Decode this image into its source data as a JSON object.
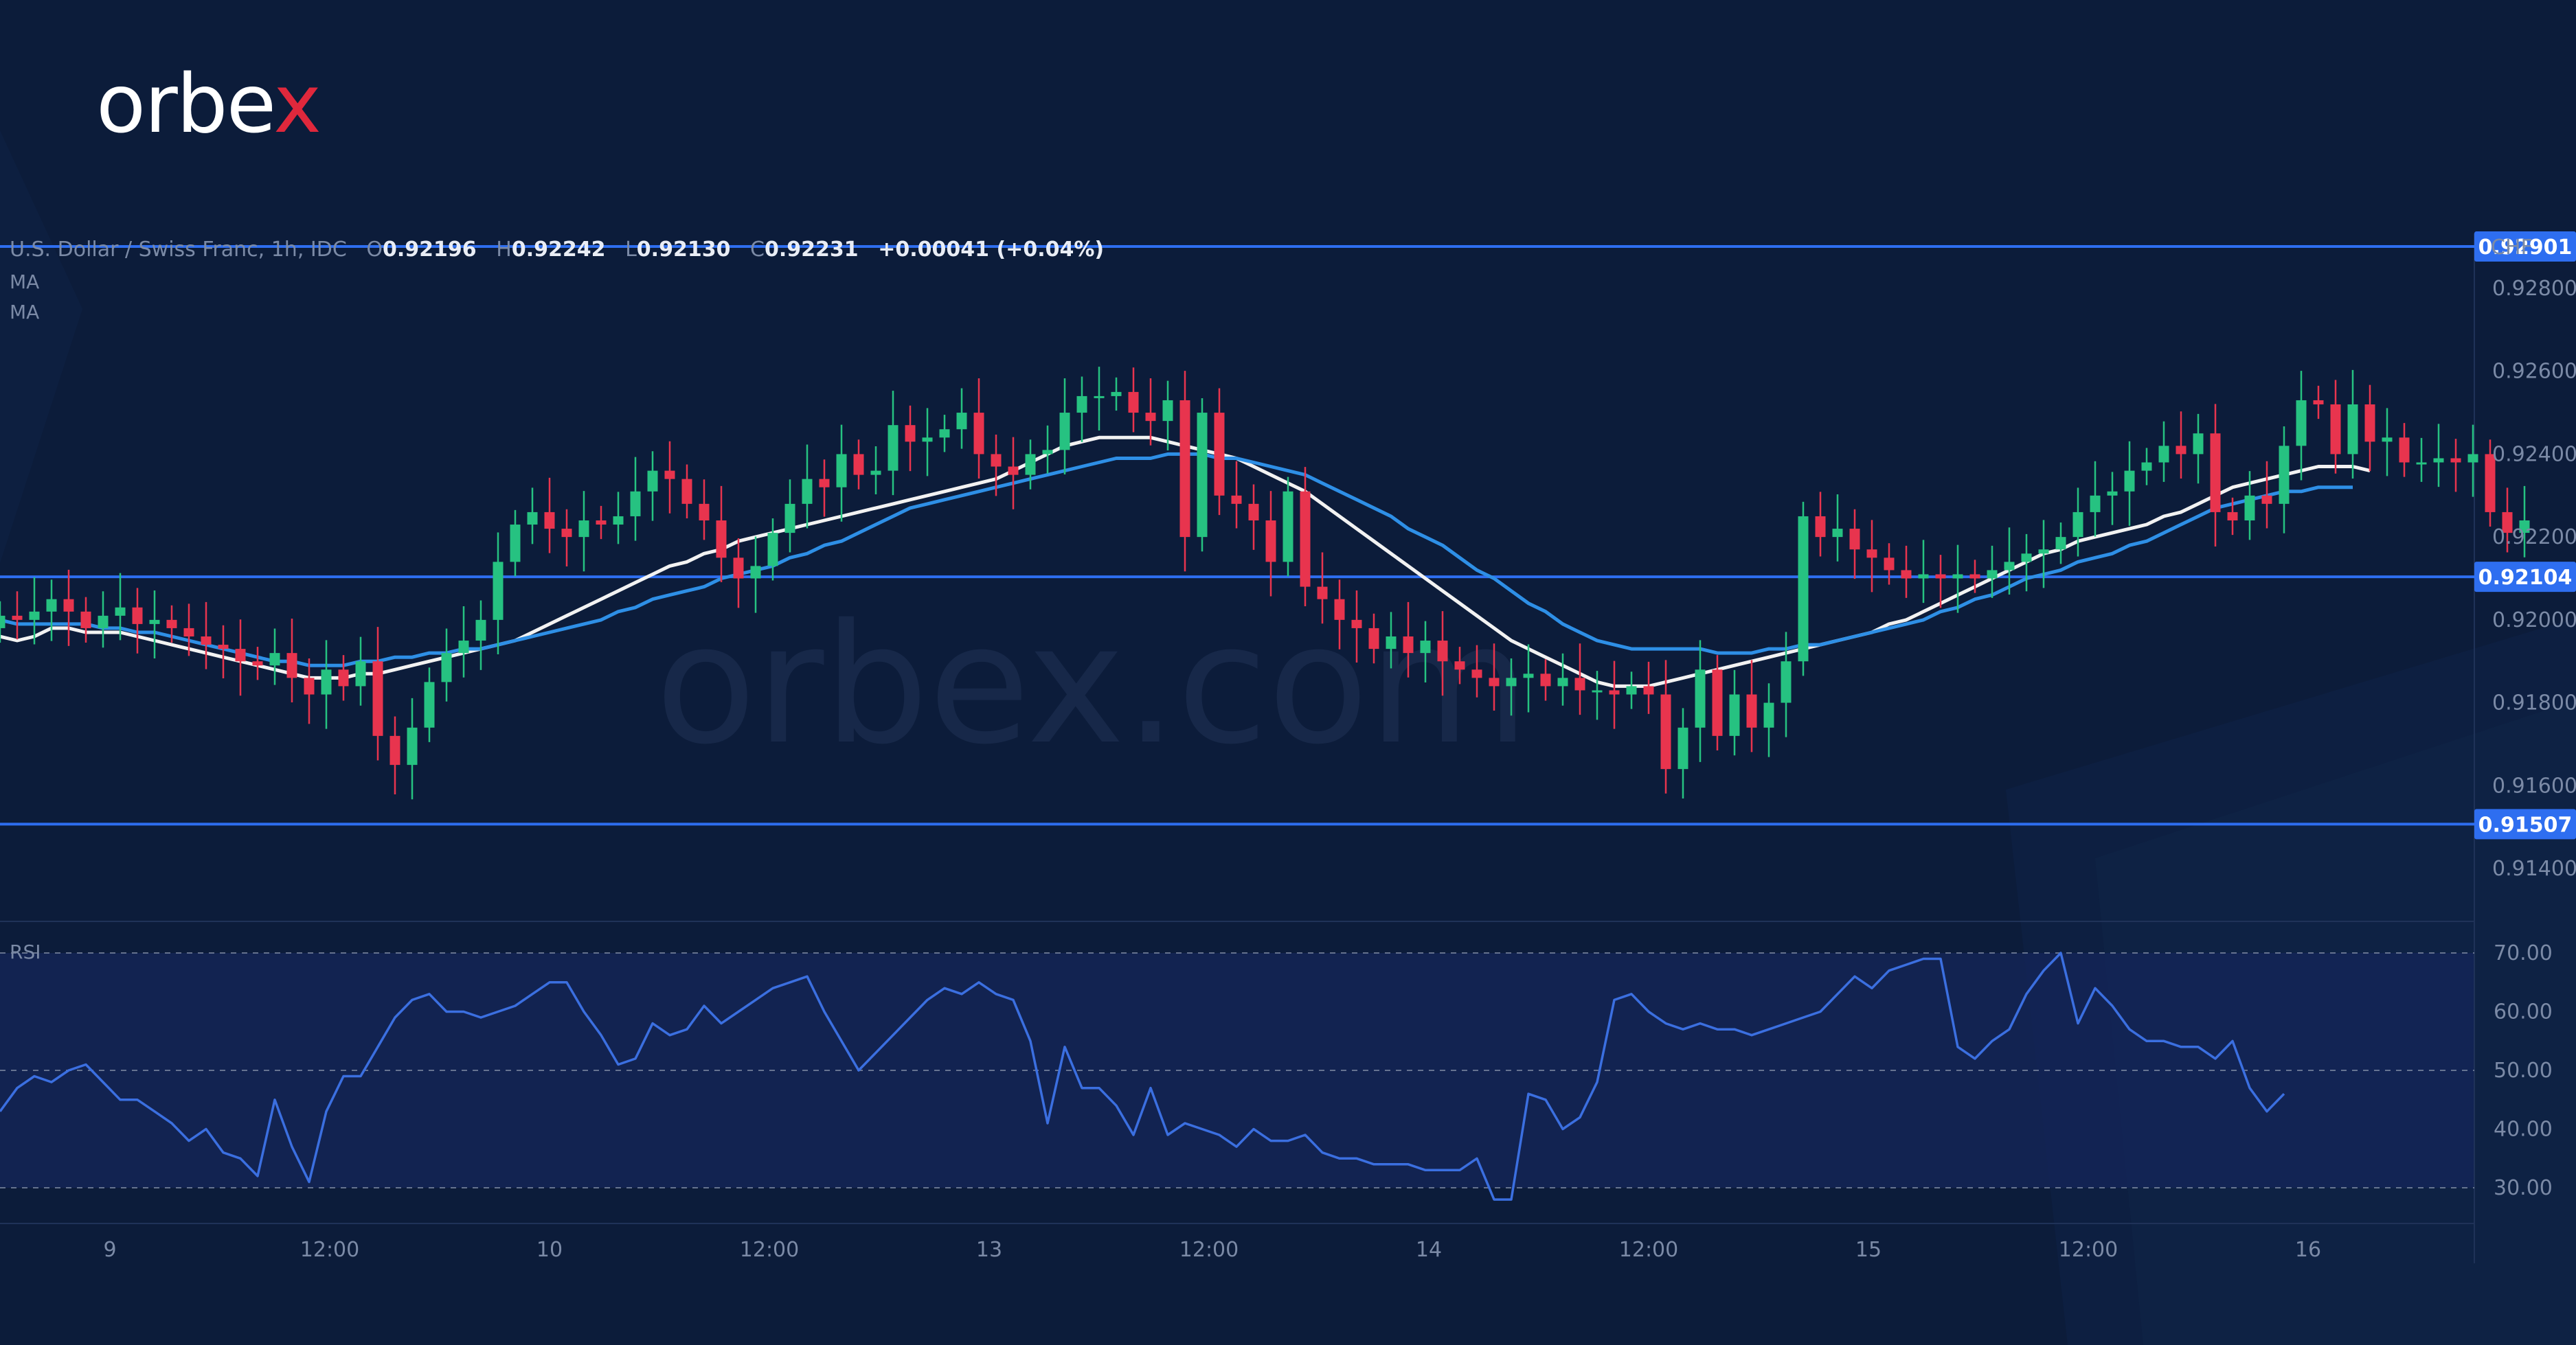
{
  "brand": {
    "logo_main": "orbe",
    "logo_x": "x",
    "watermark": "orbex.com"
  },
  "legend": {
    "symbol": "U.S. Dollar / Swiss Franc, 1h, IDC",
    "o_label": "O",
    "o_value": "0.92196",
    "h_label": "H",
    "h_value": "0.92242",
    "l_label": "L",
    "l_value": "0.92130",
    "c_label": "C",
    "c_value": "0.92231",
    "change": "+0.00041 (+0.04%)",
    "ma1": "MA",
    "ma2": "MA"
  },
  "colors": {
    "background": "#0c1c3a",
    "bull": "#26c281",
    "bear": "#e8344e",
    "ma_fast": "#f2f2f2",
    "ma_slow": "#2e8fe6",
    "level_line": "#2e6ef0",
    "rsi_line": "#3b6fe0"
  },
  "chart_data": [
    {
      "type": "candlestick",
      "currency": "CHF",
      "ylim": [
        0.913,
        0.93
      ],
      "y_ticks": [
        "0.92800",
        "0.92600",
        "0.92400",
        "0.92200",
        "0.92000",
        "0.91800",
        "0.91600",
        "0.91400"
      ],
      "levels": [
        {
          "value": 0.92901,
          "label": "0.92901"
        },
        {
          "value": 0.92104,
          "label": "0.92104"
        },
        {
          "value": 0.91507,
          "label": "0.91507"
        }
      ],
      "x_ticks": [
        "9",
        "12:00",
        "10",
        "12:00",
        "13",
        "12:00",
        "14",
        "12:00",
        "15",
        "12:00",
        "16"
      ],
      "series": [
        {
          "name": "MA",
          "values": [
            0.9196,
            0.9195,
            0.9196,
            0.9198,
            0.9198,
            0.9197,
            0.9197,
            0.9197,
            0.9196,
            0.9195,
            0.9194,
            0.9193,
            0.9192,
            0.9191,
            0.919,
            0.9189,
            0.9188,
            0.9187,
            0.9186,
            0.9186,
            0.9186,
            0.9187,
            0.9187,
            0.9188,
            0.9189,
            0.919,
            0.9191,
            0.9192,
            0.9193,
            0.9194,
            0.9195,
            0.9197,
            0.9199,
            0.9201,
            0.9203,
            0.9205,
            0.9207,
            0.9209,
            0.9211,
            0.9213,
            0.9214,
            0.9216,
            0.9217,
            0.9219,
            0.922,
            0.9221,
            0.9222,
            0.9223,
            0.9224,
            0.9225,
            0.9226,
            0.9227,
            0.9228,
            0.9229,
            0.923,
            0.9231,
            0.9232,
            0.9233,
            0.9234,
            0.9236,
            0.9238,
            0.924,
            0.9242,
            0.9243,
            0.9244,
            0.9244,
            0.9244,
            0.9244,
            0.9243,
            0.9242,
            0.9241,
            0.924,
            0.9239,
            0.9237,
            0.9235,
            0.9233,
            0.9231,
            0.9228,
            0.9225,
            0.9222,
            0.9219,
            0.9216,
            0.9213,
            0.921,
            0.9207,
            0.9204,
            0.9201,
            0.9198,
            0.9195,
            0.9193,
            0.9191,
            0.9189,
            0.9187,
            0.9185,
            0.9184,
            0.9184,
            0.9184,
            0.9185,
            0.9186,
            0.9187,
            0.9188,
            0.9189,
            0.919,
            0.9191,
            0.9192,
            0.9193,
            0.9194,
            0.9195,
            0.9196,
            0.9197,
            0.9199,
            0.92,
            0.9202,
            0.9204,
            0.9206,
            0.9208,
            0.921,
            0.9212,
            0.9214,
            0.9216,
            0.9217,
            0.9219,
            0.922,
            0.9221,
            0.9222,
            0.9223,
            0.9225,
            0.9226,
            0.9228,
            0.923,
            0.9232,
            0.9233,
            0.9234,
            0.9235,
            0.9236,
            0.9237,
            0.9237,
            0.9237,
            0.9236
          ]
        },
        {
          "name": "MA",
          "values": [
            0.92,
            0.9199,
            0.9199,
            0.9199,
            0.9199,
            0.9199,
            0.9198,
            0.9198,
            0.9197,
            0.9197,
            0.9196,
            0.9195,
            0.9194,
            0.9193,
            0.9192,
            0.9191,
            0.919,
            0.919,
            0.9189,
            0.9189,
            0.9189,
            0.919,
            0.919,
            0.9191,
            0.9191,
            0.9192,
            0.9192,
            0.9193,
            0.9193,
            0.9194,
            0.9195,
            0.9196,
            0.9197,
            0.9198,
            0.9199,
            0.92,
            0.9202,
            0.9203,
            0.9205,
            0.9206,
            0.9207,
            0.9208,
            0.921,
            0.9211,
            0.9212,
            0.9213,
            0.9215,
            0.9216,
            0.9218,
            0.9219,
            0.9221,
            0.9223,
            0.9225,
            0.9227,
            0.9228,
            0.9229,
            0.923,
            0.9231,
            0.9232,
            0.9233,
            0.9234,
            0.9235,
            0.9236,
            0.9237,
            0.9238,
            0.9239,
            0.9239,
            0.9239,
            0.924,
            0.924,
            0.924,
            0.9239,
            0.9239,
            0.9238,
            0.9237,
            0.9236,
            0.9235,
            0.9233,
            0.9231,
            0.9229,
            0.9227,
            0.9225,
            0.9222,
            0.922,
            0.9218,
            0.9215,
            0.9212,
            0.921,
            0.9207,
            0.9204,
            0.9202,
            0.9199,
            0.9197,
            0.9195,
            0.9194,
            0.9193,
            0.9193,
            0.9193,
            0.9193,
            0.9193,
            0.9192,
            0.9192,
            0.9192,
            0.9193,
            0.9193,
            0.9194,
            0.9194,
            0.9195,
            0.9196,
            0.9197,
            0.9198,
            0.9199,
            0.92,
            0.9202,
            0.9203,
            0.9205,
            0.9206,
            0.9208,
            0.921,
            0.9211,
            0.9212,
            0.9214,
            0.9215,
            0.9216,
            0.9218,
            0.9219,
            0.9221,
            0.9223,
            0.9225,
            0.9227,
            0.9228,
            0.9229,
            0.923,
            0.9231,
            0.9231,
            0.9232,
            0.9232,
            0.9232
          ]
        }
      ],
      "candles_close": [
        0.9201,
        0.92,
        0.9202,
        0.9205,
        0.9202,
        0.9198,
        0.9201,
        0.9203,
        0.9199,
        0.92,
        0.9198,
        0.9196,
        0.9194,
        0.9193,
        0.919,
        0.9189,
        0.9192,
        0.9186,
        0.9182,
        0.9188,
        0.9184,
        0.919,
        0.9172,
        0.9165,
        0.9174,
        0.9185,
        0.9192,
        0.9195,
        0.92,
        0.9214,
        0.9223,
        0.9226,
        0.9222,
        0.922,
        0.9224,
        0.9223,
        0.9225,
        0.9231,
        0.9236,
        0.9234,
        0.9228,
        0.9224,
        0.9215,
        0.921,
        0.9213,
        0.9221,
        0.9228,
        0.9234,
        0.9232,
        0.924,
        0.9235,
        0.9236,
        0.9247,
        0.9243,
        0.9244,
        0.9246,
        0.925,
        0.924,
        0.9237,
        0.9235,
        0.924,
        0.9241,
        0.925,
        0.9254,
        0.9254,
        0.9255,
        0.925,
        0.9248,
        0.9253,
        0.922,
        0.925,
        0.923,
        0.9228,
        0.9224,
        0.9214,
        0.9231,
        0.9208,
        0.9205,
        0.92,
        0.9198,
        0.9193,
        0.9196,
        0.9192,
        0.9195,
        0.919,
        0.9188,
        0.9186,
        0.9184,
        0.9186,
        0.9187,
        0.9184,
        0.9186,
        0.9183,
        0.9183,
        0.9182,
        0.9184,
        0.9182,
        0.9164,
        0.9174,
        0.9188,
        0.9172,
        0.9182,
        0.9174,
        0.918,
        0.919,
        0.9225,
        0.922,
        0.9222,
        0.9217,
        0.9215,
        0.9212,
        0.921,
        0.9211,
        0.921,
        0.9211,
        0.921,
        0.9212,
        0.9214,
        0.9216,
        0.9217,
        0.922,
        0.9226,
        0.923,
        0.9231,
        0.9236,
        0.9238,
        0.9242,
        0.924,
        0.9245,
        0.9226,
        0.9224,
        0.923,
        0.9228,
        0.9242,
        0.9253,
        0.9252,
        0.924,
        0.9252,
        0.9243,
        0.9244,
        0.9238,
        0.9238,
        0.9239,
        0.9238,
        0.924,
        0.9226,
        0.9221,
        0.9224
      ],
      "rsi": {
        "name": "RSI",
        "ylim": [
          25,
          75
        ],
        "y_ticks": [
          "70.00",
          "60.00",
          "50.00",
          "40.00",
          "30.00"
        ],
        "upper": 70,
        "lower": 30,
        "values": [
          43,
          47,
          49,
          48,
          50,
          51,
          48,
          45,
          45,
          43,
          41,
          38,
          40,
          36,
          35,
          32,
          45,
          37,
          31,
          43,
          49,
          49,
          54,
          59,
          62,
          63,
          60,
          60,
          59,
          60,
          61,
          63,
          65,
          65,
          60,
          56,
          51,
          52,
          58,
          56,
          57,
          61,
          58,
          60,
          62,
          64,
          65,
          66,
          60,
          55,
          50,
          53,
          56,
          59,
          62,
          64,
          63,
          65,
          63,
          62,
          55,
          41,
          54,
          47,
          47,
          44,
          39,
          47,
          39,
          41,
          40,
          39,
          37,
          40,
          38,
          38,
          39,
          36,
          35,
          35,
          34,
          34,
          34,
          33,
          33,
          33,
          35,
          28,
          28,
          46,
          45,
          40,
          42,
          48,
          62,
          63,
          60,
          58,
          57,
          58,
          57,
          57,
          56,
          57,
          58,
          59,
          60,
          63,
          66,
          64,
          67,
          68,
          69,
          69,
          54,
          52,
          55,
          57,
          63,
          67,
          70,
          58,
          64,
          61,
          57,
          55,
          55,
          54,
          54,
          52,
          55,
          47,
          43,
          46
        ]
      }
    }
  ]
}
